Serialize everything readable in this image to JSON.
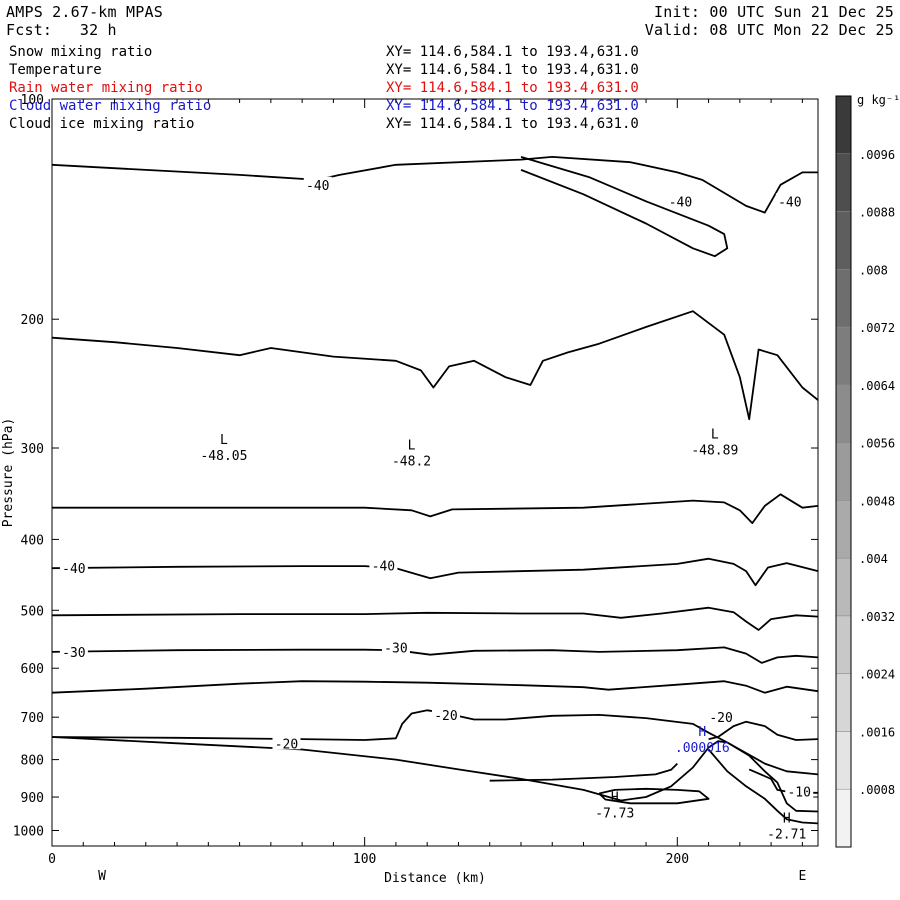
{
  "header": {
    "model": "AMPS 2.67-km MPAS",
    "forecast": "Fcst:   32 h",
    "init": "Init: 00 UTC Sun 21 Dec 25",
    "valid": "Valid: 08 UTC Mon 22 Dec 25"
  },
  "legend": [
    {
      "name": "Snow mixing ratio",
      "xy": "XY= 114.6,584.1 to 193.4,631.0",
      "color": "#000000"
    },
    {
      "name": "Temperature",
      "xy": "XY= 114.6,584.1 to 193.4,631.0",
      "color": "#000000"
    },
    {
      "name": "Rain water mixing ratio",
      "xy": "XY= 114.6,584.1 to 193.4,631.0",
      "color": "#e01010"
    },
    {
      "name": "Cloud water mixing ratio",
      "xy": "XY= 114.6,584.1 to 193.4,631.0",
      "color": "#1a1acc"
    },
    {
      "name": "Cloud ice mixing ratio",
      "xy": "XY= 114.6,584.1 to 193.4,631.0",
      "color": "#000000"
    }
  ],
  "chart_data": {
    "type": "line",
    "xlabel": "Distance (km)",
    "ylabel": "Pressure (hPa)",
    "xlim": [
      0,
      245
    ],
    "ylim": [
      1050,
      100
    ],
    "y_scale": "log",
    "xticks": [
      0,
      100,
      200
    ],
    "yticks": [
      100,
      200,
      300,
      400,
      500,
      600,
      700,
      800,
      900,
      1000
    ],
    "x_end_labels": {
      "left": "W",
      "right": "E"
    },
    "contour_labels": [
      {
        "text": "-40",
        "x": 85,
        "p": 131
      },
      {
        "text": "-40",
        "x": 236,
        "p": 138
      },
      {
        "text": "-40",
        "x": 201,
        "p": 138
      },
      {
        "text": "-40",
        "x": 7,
        "p": 438
      },
      {
        "text": "-40",
        "x": 106,
        "p": 434
      },
      {
        "text": "-30",
        "x": 7,
        "p": 570
      },
      {
        "text": "-30",
        "x": 110,
        "p": 562
      },
      {
        "text": "-20",
        "x": 126,
        "p": 695
      },
      {
        "text": "-20",
        "x": 75,
        "p": 760
      },
      {
        "text": "-20",
        "x": 214,
        "p": 700
      },
      {
        "text": "-10",
        "x": 239,
        "p": 885
      }
    ],
    "extrema": [
      {
        "type": "L",
        "value": "-48.05",
        "x": 55,
        "p": 300,
        "color": "#000000"
      },
      {
        "type": "L",
        "value": "-48.2",
        "x": 115,
        "p": 305,
        "color": "#000000"
      },
      {
        "type": "L",
        "value": "-48.89",
        "x": 212,
        "p": 295,
        "color": "#000000"
      },
      {
        "type": "H",
        "value": "-7.73",
        "x": 180,
        "p": 925,
        "color": "#000000"
      },
      {
        "type": "H",
        "value": "-2.71",
        "x": 235,
        "p": 988,
        "color": "#000000"
      },
      {
        "type": "H",
        "value": ".000016",
        "x": 208,
        "p": 752,
        "color": "#1a1acc"
      }
    ],
    "series": [
      {
        "points": [
          [
            0,
            123
          ],
          [
            30,
            125
          ],
          [
            60,
            127
          ],
          [
            85,
            129
          ],
          [
            92,
            127
          ],
          [
            110,
            123
          ],
          [
            150,
            121
          ],
          [
            160,
            120
          ],
          [
            185,
            122
          ],
          [
            200,
            126
          ],
          [
            208,
            129
          ],
          [
            222,
            140
          ],
          [
            228,
            143
          ],
          [
            233,
            131
          ],
          [
            240,
            126
          ],
          [
            245,
            126
          ]
        ]
      },
      {
        "points": [
          [
            150,
            120
          ],
          [
            172,
            128
          ],
          [
            190,
            138
          ],
          [
            210,
            149
          ],
          [
            215,
            153
          ],
          [
            216,
            160
          ],
          [
            212,
            164
          ],
          [
            205,
            160
          ],
          [
            190,
            148
          ],
          [
            170,
            135
          ],
          [
            150,
            125
          ]
        ]
      },
      {
        "points": [
          [
            0,
            212
          ],
          [
            20,
            215
          ],
          [
            40,
            219
          ],
          [
            60,
            224
          ],
          [
            70,
            219
          ],
          [
            90,
            225
          ],
          [
            110,
            228
          ],
          [
            118,
            235
          ],
          [
            122,
            248
          ],
          [
            127,
            232
          ],
          [
            135,
            228
          ],
          [
            145,
            240
          ],
          [
            153,
            246
          ],
          [
            157,
            228
          ],
          [
            165,
            222
          ],
          [
            175,
            216
          ],
          [
            190,
            205
          ],
          [
            205,
            195
          ],
          [
            215,
            210
          ],
          [
            220,
            240
          ],
          [
            223,
            274
          ],
          [
            226,
            220
          ],
          [
            232,
            224
          ],
          [
            240,
            248
          ],
          [
            245,
            258
          ]
        ]
      },
      {
        "points": [
          [
            0,
            362
          ],
          [
            60,
            362
          ],
          [
            100,
            362
          ],
          [
            115,
            365
          ],
          [
            121,
            372
          ],
          [
            128,
            364
          ],
          [
            170,
            362
          ],
          [
            205,
            354
          ],
          [
            215,
            356
          ],
          [
            220,
            365
          ],
          [
            224,
            380
          ],
          [
            228,
            360
          ],
          [
            233,
            347
          ],
          [
            240,
            362
          ],
          [
            245,
            360
          ]
        ]
      },
      {
        "points": [
          [
            0,
            438
          ],
          [
            40,
            436
          ],
          [
            80,
            435
          ],
          [
            100,
            435
          ],
          [
            110,
            438
          ],
          [
            121,
            452
          ],
          [
            130,
            444
          ],
          [
            170,
            440
          ],
          [
            200,
            432
          ],
          [
            210,
            425
          ],
          [
            218,
            432
          ],
          [
            222,
            442
          ],
          [
            225,
            462
          ],
          [
            229,
            437
          ],
          [
            235,
            431
          ],
          [
            245,
            442
          ]
        ]
      },
      {
        "points": [
          [
            0,
            508
          ],
          [
            60,
            506
          ],
          [
            100,
            506
          ],
          [
            120,
            504
          ],
          [
            150,
            505
          ],
          [
            170,
            505
          ],
          [
            182,
            512
          ],
          [
            195,
            505
          ],
          [
            210,
            496
          ],
          [
            218,
            503
          ],
          [
            222,
            518
          ],
          [
            226,
            532
          ],
          [
            230,
            514
          ],
          [
            238,
            508
          ],
          [
            245,
            510
          ]
        ]
      },
      {
        "points": [
          [
            0,
            570
          ],
          [
            40,
            567
          ],
          [
            80,
            566
          ],
          [
            100,
            566
          ],
          [
            110,
            567
          ],
          [
            121,
            575
          ],
          [
            135,
            568
          ],
          [
            160,
            567
          ],
          [
            175,
            570
          ],
          [
            200,
            567
          ],
          [
            215,
            562
          ],
          [
            222,
            573
          ],
          [
            227,
            590
          ],
          [
            232,
            580
          ],
          [
            238,
            577
          ],
          [
            245,
            580
          ]
        ]
      },
      {
        "points": [
          [
            0,
            648
          ],
          [
            30,
            640
          ],
          [
            60,
            630
          ],
          [
            80,
            625
          ],
          [
            100,
            626
          ],
          [
            120,
            628
          ],
          [
            150,
            633
          ],
          [
            170,
            637
          ],
          [
            178,
            642
          ],
          [
            200,
            632
          ],
          [
            215,
            625
          ],
          [
            222,
            634
          ],
          [
            228,
            648
          ],
          [
            235,
            636
          ],
          [
            245,
            645
          ]
        ]
      },
      {
        "points": [
          [
            0,
            745
          ],
          [
            40,
            747
          ],
          [
            80,
            750
          ],
          [
            100,
            752
          ],
          [
            110,
            748
          ],
          [
            112,
            715
          ],
          [
            115,
            692
          ],
          [
            120,
            685
          ],
          [
            125,
            690
          ],
          [
            135,
            705
          ],
          [
            145,
            705
          ],
          [
            160,
            697
          ],
          [
            175,
            695
          ],
          [
            190,
            702
          ],
          [
            205,
            715
          ],
          [
            210,
            735
          ],
          [
            216,
            758
          ],
          [
            223,
            790
          ],
          [
            228,
            830
          ],
          [
            232,
            860
          ],
          [
            235,
            918
          ],
          [
            238,
            940
          ],
          [
            245,
            942
          ]
        ]
      },
      {
        "points": [
          [
            140,
            855
          ],
          [
            160,
            852
          ],
          [
            180,
            845
          ],
          [
            193,
            838
          ],
          [
            198,
            826
          ],
          [
            200,
            810
          ]
        ]
      },
      {
        "points": [
          [
            210,
            750
          ],
          [
            213,
            745
          ],
          [
            218,
            720
          ],
          [
            222,
            710
          ],
          [
            228,
            720
          ],
          [
            232,
            740
          ],
          [
            238,
            752
          ],
          [
            245,
            750
          ]
        ]
      },
      {
        "points": [
          [
            0,
            745
          ],
          [
            40,
            760
          ],
          [
            80,
            775
          ],
          [
            110,
            800
          ],
          [
            130,
            825
          ],
          [
            150,
            850
          ],
          [
            170,
            880
          ],
          [
            182,
            910
          ],
          [
            190,
            900
          ],
          [
            198,
            870
          ],
          [
            205,
            820
          ],
          [
            210,
            770
          ],
          [
            213,
            755
          ],
          [
            216,
            758
          ],
          [
            220,
            775
          ],
          [
            228,
            810
          ],
          [
            235,
            830
          ],
          [
            245,
            838
          ]
        ]
      },
      {
        "points": [
          [
            175,
            890
          ],
          [
            180,
            880
          ],
          [
            190,
            877
          ],
          [
            200,
            880
          ],
          [
            207,
            884
          ],
          [
            210,
            905
          ],
          [
            200,
            918
          ],
          [
            185,
            918
          ],
          [
            177,
            907
          ],
          [
            175,
            890
          ]
        ]
      },
      {
        "points": [
          [
            210,
            775
          ],
          [
            216,
            830
          ],
          [
            222,
            870
          ],
          [
            228,
            905
          ],
          [
            232,
            940
          ],
          [
            235,
            965
          ],
          [
            240,
            975
          ],
          [
            245,
            978
          ]
        ]
      },
      {
        "points": [
          [
            223,
            825
          ],
          [
            230,
            850
          ],
          [
            232,
            880
          ],
          [
            237,
            888
          ],
          [
            245,
            888
          ]
        ]
      }
    ]
  },
  "colorbar": {
    "unit": "g kg⁻¹",
    "labels": [
      ".0096",
      ".0088",
      ".008",
      ".0072",
      ".0064",
      ".0056",
      ".0048",
      ".004",
      ".0032",
      ".0024",
      ".0016",
      ".0008"
    ],
    "shades": [
      "#3a3a3a",
      "#4e4e4e",
      "#5e5e5e",
      "#6e6e6e",
      "#7d7d7d",
      "#8c8c8c",
      "#9b9b9b",
      "#aaaaaa",
      "#b9b9b9",
      "#c8c8c8",
      "#d6d6d6",
      "#e4e4e4",
      "#f2f2f2"
    ]
  }
}
